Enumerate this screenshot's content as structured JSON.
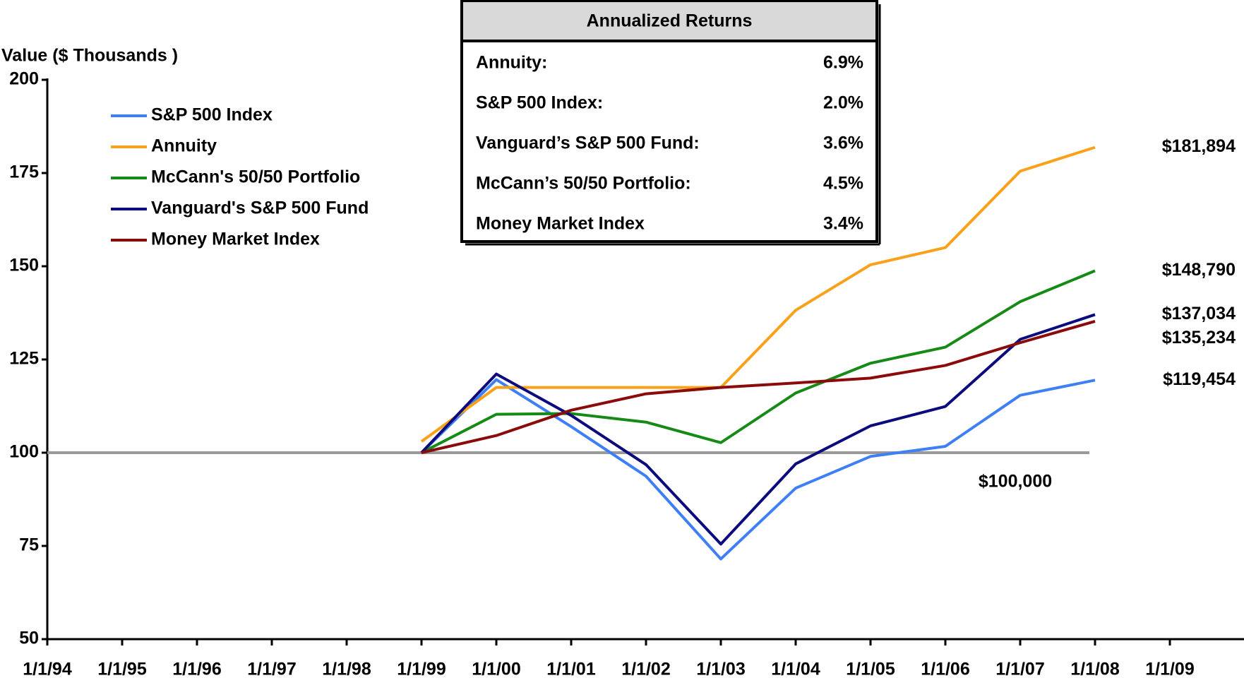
{
  "chart_data": {
    "type": "line",
    "y_label": "Value ($ Thousands )",
    "categories": [
      "1/1/94",
      "1/1/95",
      "1/1/96",
      "1/1/97",
      "1/1/98",
      "1/1/99",
      "1/1/00",
      "1/1/01",
      "1/1/02",
      "1/1/03",
      "1/1/04",
      "1/1/05",
      "1/1/06",
      "1/1/07",
      "1/1/08",
      "1/1/09"
    ],
    "series": [
      {
        "name": "S&P 500 Index",
        "color": "#3f7ff5",
        "values": [
          null,
          null,
          null,
          null,
          null,
          100,
          119.6,
          107,
          93.7,
          71.5,
          90.5,
          99,
          101.7,
          115.4,
          119.454,
          null
        ],
        "value_labels": [
          null,
          null,
          null,
          null,
          null,
          null,
          null,
          null,
          null,
          null,
          null,
          null,
          null,
          null,
          "$119,454",
          null
        ]
      },
      {
        "name": "Annuity",
        "color": "#f9a11b",
        "values": [
          null,
          null,
          null,
          null,
          null,
          103,
          117.5,
          117.5,
          117.5,
          117.5,
          138.2,
          150.4,
          155,
          175.5,
          181.894,
          null
        ],
        "value_labels": [
          null,
          null,
          null,
          null,
          null,
          null,
          null,
          null,
          null,
          null,
          null,
          null,
          null,
          null,
          "$181,894",
          null
        ]
      },
      {
        "name": "McCann's 50/50 Portfolio",
        "color": "#168a16",
        "values": [
          null,
          null,
          null,
          null,
          null,
          100,
          110.3,
          110.5,
          108.2,
          102.7,
          116,
          124,
          128.3,
          140.5,
          148.79,
          null
        ],
        "value_labels": [
          null,
          null,
          null,
          null,
          null,
          null,
          null,
          null,
          null,
          null,
          null,
          null,
          null,
          null,
          "$148,790",
          null
        ]
      },
      {
        "name": "Vanguard's S&P 500 Fund",
        "color": "#0b0b7e",
        "values": [
          null,
          null,
          null,
          null,
          null,
          100,
          121.1,
          110,
          96.8,
          75.5,
          97,
          107.2,
          112.4,
          130.4,
          137.034,
          null
        ],
        "value_labels": [
          null,
          null,
          null,
          null,
          null,
          null,
          null,
          null,
          null,
          null,
          null,
          null,
          null,
          null,
          "$137,034",
          null
        ]
      },
      {
        "name": "Money Market Index",
        "color": "#8b0b0b",
        "values": [
          null,
          null,
          null,
          null,
          null,
          100,
          104.6,
          111.4,
          115.8,
          117.5,
          118.7,
          120,
          123.4,
          129.5,
          135.234,
          null
        ],
        "value_labels": [
          null,
          null,
          null,
          null,
          null,
          null,
          null,
          null,
          null,
          null,
          null,
          null,
          null,
          null,
          "$135,234",
          null
        ]
      }
    ],
    "ylim": [
      50,
      200
    ],
    "yticks": [
      50,
      75,
      100,
      125,
      150,
      175,
      200
    ],
    "grid": false,
    "legend": "upper left",
    "reference_line": {
      "value": 100,
      "label": "$100,000",
      "color": "#999999"
    },
    "returns_table": {
      "title": "Annualized Returns",
      "rows": [
        {
          "name": "Annuity:",
          "value": "6.9%",
          "color": "#f9a11b"
        },
        {
          "name": "S&P 500 Index:",
          "value": "2.0%",
          "color": "#3f7ff5"
        },
        {
          "name": "Vanguard’s S&P 500 Fund:",
          "value": "3.6%",
          "color": "#0b0b7e"
        },
        {
          "name": "McCann’s 50/50 Portfolio:",
          "value": "4.5%",
          "color": "#168a16"
        },
        {
          "name": "Money Market Index",
          "value": "3.4%",
          "color": "#8b0b0b"
        }
      ]
    }
  }
}
